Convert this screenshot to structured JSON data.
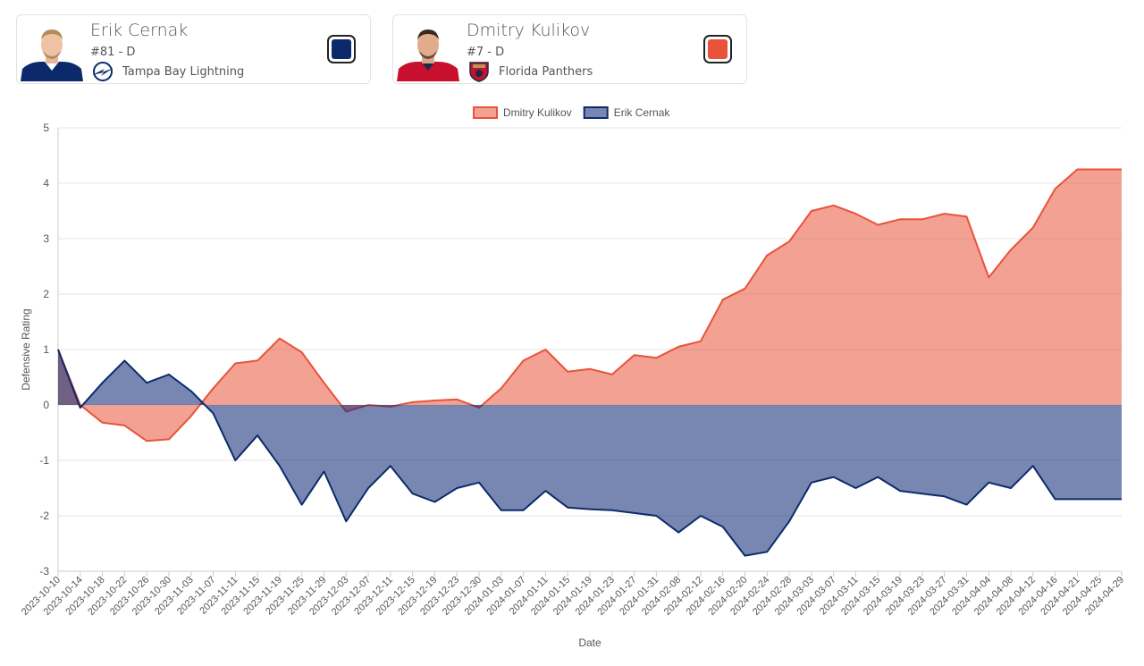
{
  "players": [
    {
      "name": "Erik Cernak",
      "number_position": "#81 - D",
      "team": "Tampa Bay Lightning",
      "team_logo_icon": "lightning-logo-icon",
      "color": "#0c2a6b"
    },
    {
      "name": "Dmitry Kulikov",
      "number_position": "#7 - D",
      "team": "Florida Panthers",
      "team_logo_icon": "panthers-logo-icon",
      "color": "#e8533a"
    }
  ],
  "chart_data": {
    "type": "area",
    "xlabel": "Date",
    "ylabel": "Defensive Rating",
    "ylim": [
      -3,
      5
    ],
    "yticks": [
      5,
      4,
      3,
      2,
      1,
      0,
      -1,
      -2,
      -3
    ],
    "grid": true,
    "legend_position": "top-center",
    "x": [
      "2023-10-10",
      "2023-10-14",
      "2023-10-18",
      "2023-10-22",
      "2023-10-26",
      "2023-10-30",
      "2023-11-03",
      "2023-11-07",
      "2023-11-11",
      "2023-11-15",
      "2023-11-19",
      "2023-11-25",
      "2023-11-29",
      "2023-12-03",
      "2023-12-07",
      "2023-12-11",
      "2023-12-15",
      "2023-12-19",
      "2023-12-23",
      "2023-12-30",
      "2024-01-03",
      "2024-01-07",
      "2024-01-11",
      "2024-01-15",
      "2024-01-19",
      "2024-01-23",
      "2024-01-27",
      "2024-01-31",
      "2024-02-08",
      "2024-02-12",
      "2024-02-16",
      "2024-02-20",
      "2024-02-24",
      "2024-02-28",
      "2024-03-03",
      "2024-03-07",
      "2024-03-11",
      "2024-03-15",
      "2024-03-19",
      "2024-03-23",
      "2024-03-27",
      "2024-03-31",
      "2024-04-04",
      "2024-04-08",
      "2024-04-12",
      "2024-04-16",
      "2024-04-21",
      "2024-04-25",
      "2024-04-29"
    ],
    "series": [
      {
        "name": "Dmitry Kulikov",
        "color": "#e8533a",
        "fill": "rgba(232,83,58,0.55)",
        "values": [
          1.0,
          0.0,
          -0.32,
          -0.37,
          -0.65,
          -0.62,
          -0.2,
          0.3,
          0.75,
          0.8,
          1.2,
          0.95,
          0.4,
          -0.12,
          0.0,
          -0.03,
          0.05,
          0.08,
          0.1,
          -0.05,
          0.3,
          0.8,
          1.0,
          0.6,
          0.65,
          0.55,
          0.9,
          0.85,
          1.05,
          1.15,
          1.9,
          2.1,
          2.7,
          2.95,
          3.5,
          3.6,
          3.45,
          3.25,
          3.35,
          3.35,
          3.45,
          3.4,
          2.3,
          2.8,
          3.2,
          3.9,
          4.25,
          4.25,
          4.25
        ]
      },
      {
        "name": "Erik Cernak",
        "color": "#0c2a6b",
        "fill": "rgba(21,48,120,0.58)",
        "values": [
          1.0,
          -0.05,
          0.4,
          0.8,
          0.4,
          0.55,
          0.25,
          -0.15,
          -1.0,
          -0.55,
          -1.1,
          -1.8,
          -1.2,
          -2.1,
          -1.5,
          -1.1,
          -1.6,
          -1.75,
          -1.5,
          -1.4,
          -1.9,
          -1.9,
          -1.55,
          -1.85,
          -1.88,
          -1.9,
          -1.95,
          -2.0,
          -2.3,
          -2.0,
          -2.2,
          -2.72,
          -2.65,
          -2.1,
          -1.4,
          -1.3,
          -1.5,
          -1.3,
          -1.55,
          -1.6,
          -1.65,
          -1.8,
          -1.4,
          -1.5,
          -1.1,
          -1.7,
          -1.7,
          -1.7,
          -1.7
        ]
      }
    ]
  }
}
